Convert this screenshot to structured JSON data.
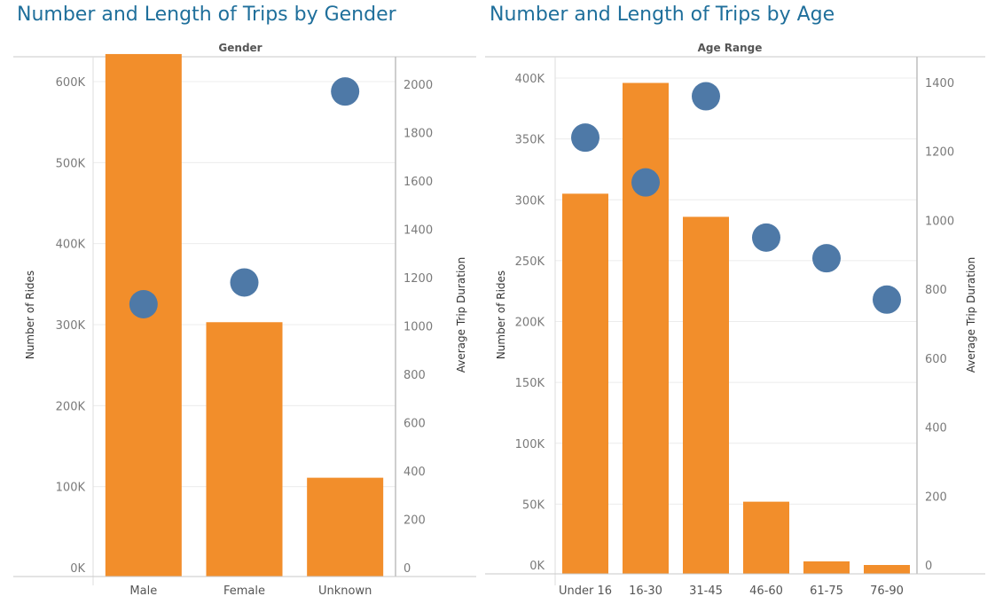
{
  "colors": {
    "bar": "#f28e2b",
    "dot": "#4e79a7",
    "title": "#1f6f9b",
    "axis_text": "#7a7a7a",
    "grid": "#ececec"
  },
  "chart_data": [
    {
      "type": "bar",
      "title": "Number and Length of Trips by Gender",
      "header": "Gender",
      "categories": [
        "Male",
        "Female",
        "Unknown"
      ],
      "series": [
        {
          "name": "Number of Rides",
          "type": "bar",
          "axis": "left",
          "values": [
            634000,
            303000,
            111000
          ]
        },
        {
          "name": "Average Trip Duration",
          "type": "scatter",
          "axis": "right",
          "values": [
            1090,
            1180,
            1970
          ]
        }
      ],
      "ylabel_left": "Number of Rides",
      "ylabel_right": "Average Trip Duration",
      "ylim_left": [
        0,
        660000
      ],
      "ylim_right": [
        0,
        2076
      ],
      "yticks_left": [
        "0K",
        "100K",
        "200K",
        "300K",
        "400K",
        "500K",
        "600K"
      ],
      "yticks_right": [
        "0",
        "200",
        "400",
        "600",
        "800",
        "1000",
        "1200",
        "1400",
        "1600",
        "1800",
        "2000"
      ],
      "grid": true
    },
    {
      "type": "bar",
      "title": "Number and Length of Trips by Age",
      "header": "Age Range",
      "categories": [
        "Under 16",
        "16-30",
        "31-45",
        "46-60",
        "61-75",
        "76-90"
      ],
      "series": [
        {
          "name": "Number of Rides",
          "type": "bar",
          "axis": "left",
          "values": [
            305000,
            396000,
            286000,
            52000,
            3000,
            0
          ]
        },
        {
          "name": "Average Trip Duration",
          "type": "scatter",
          "axis": "right",
          "values": [
            1240,
            1110,
            1360,
            950,
            890,
            770
          ]
        }
      ],
      "ylabel_left": "Number of Rides",
      "ylabel_right": "Average Trip Duration",
      "ylim_left": [
        0,
        400000
      ],
      "ylim_right": [
        0,
        1412
      ],
      "yticks_left": [
        "0K",
        "50K",
        "100K",
        "150K",
        "200K",
        "250K",
        "300K",
        "350K",
        "400K"
      ],
      "yticks_right": [
        "0",
        "200",
        "400",
        "600",
        "800",
        "1000",
        "1200",
        "1400"
      ],
      "grid": true
    }
  ]
}
